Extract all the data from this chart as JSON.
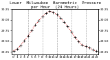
{
  "title": "Lower  Milwaukee  Barometric  Pressure",
  "title2": "per Hour  (24 Hours)",
  "hours": [
    0,
    1,
    2,
    3,
    4,
    5,
    6,
    7,
    8,
    9,
    10,
    11,
    12,
    13,
    14,
    15,
    16,
    17,
    18,
    19,
    20,
    21,
    22,
    23
  ],
  "pressure": [
    29.28,
    29.32,
    29.4,
    29.52,
    29.62,
    29.75,
    29.88,
    29.98,
    30.08,
    30.15,
    30.2,
    30.18,
    30.12,
    30.05,
    29.95,
    29.85,
    29.72,
    29.6,
    29.5,
    29.42,
    29.38,
    29.35,
    29.3,
    29.27
  ],
  "ylim": [
    29.2,
    30.25
  ],
  "yticks": [
    29.25,
    29.5,
    29.75,
    30.0,
    30.25
  ],
  "ytick_labels": [
    "29.25",
    "29.50",
    "29.75",
    "30.00",
    "30.25"
  ],
  "line_color": "#cc0000",
  "marker_color": "#000000",
  "grid_color": "#aaaaaa",
  "bg_color": "#ffffff",
  "title_color": "#000000",
  "title_fontsize": 4.2,
  "tick_fontsize": 3.2,
  "vgrid_hours": [
    4,
    8,
    12,
    16,
    20
  ],
  "xlabel_hours": [
    0,
    1,
    2,
    3,
    4,
    5,
    6,
    7,
    8,
    9,
    10,
    11,
    12,
    13,
    14,
    15,
    16,
    17,
    18,
    19,
    20,
    21,
    22,
    23
  ]
}
